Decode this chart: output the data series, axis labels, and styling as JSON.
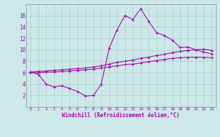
{
  "xlabel": "Windchill (Refroidissement éolien,°C)",
  "background_color": "#cce8e8",
  "grid_color": "#aacccc",
  "line_color": "#aa00aa",
  "x": [
    0,
    1,
    2,
    3,
    4,
    5,
    6,
    7,
    8,
    9,
    10,
    11,
    12,
    13,
    14,
    15,
    16,
    17,
    18,
    19,
    20,
    21,
    22,
    23
  ],
  "y_curve": [
    6.1,
    5.7,
    4.0,
    3.5,
    3.7,
    3.2,
    2.7,
    1.9,
    2.0,
    4.0,
    10.3,
    13.5,
    16.0,
    15.3,
    17.2,
    15.0,
    13.0,
    12.5,
    11.7,
    10.4,
    10.5,
    10.0,
    9.6,
    9.3
  ],
  "y_upper": [
    6.1,
    6.2,
    6.3,
    6.4,
    6.5,
    6.6,
    6.7,
    6.8,
    7.0,
    7.2,
    7.5,
    7.8,
    8.0,
    8.2,
    8.5,
    8.7,
    9.0,
    9.2,
    9.5,
    9.7,
    9.9,
    10.0,
    10.1,
    9.9
  ],
  "y_lower": [
    6.0,
    6.0,
    6.1,
    6.1,
    6.2,
    6.3,
    6.4,
    6.5,
    6.6,
    6.8,
    7.0,
    7.2,
    7.4,
    7.5,
    7.7,
    7.9,
    8.1,
    8.3,
    8.5,
    8.6,
    8.7,
    8.7,
    8.7,
    8.6
  ],
  "ylim": [
    0,
    18
  ],
  "xlim": [
    -0.5,
    23.5
  ],
  "yticks": [
    2,
    4,
    6,
    8,
    10,
    12,
    14,
    16
  ],
  "xticks": [
    0,
    1,
    2,
    3,
    4,
    5,
    6,
    7,
    8,
    9,
    10,
    11,
    12,
    13,
    14,
    15,
    16,
    17,
    18,
    19,
    20,
    21,
    22,
    23
  ]
}
